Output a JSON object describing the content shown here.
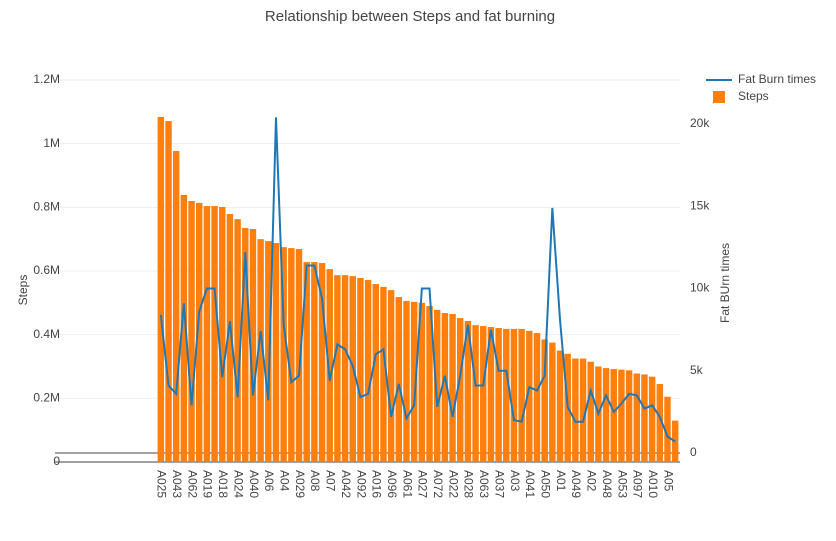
{
  "chart_data": {
    "type": "bar_line",
    "title": "Relationship between Steps and fat burning",
    "ylabel": "Steps",
    "y2label": "Fat BUrn times",
    "categories": [
      "A025",
      null,
      "A043",
      null,
      "A062",
      null,
      "A019",
      null,
      "A018",
      null,
      "A024",
      null,
      "A040",
      null,
      "A06",
      null,
      "A04",
      null,
      "A029",
      null,
      "A08",
      null,
      "A07",
      null,
      "A042",
      null,
      "A092",
      null,
      "A016",
      null,
      "A096",
      null,
      "A061",
      null,
      "A027",
      null,
      "A072",
      null,
      "A022",
      null,
      "A028",
      null,
      "A063",
      null,
      "A037",
      null,
      "A03",
      null,
      "A041",
      null,
      "A050",
      null,
      "A01",
      null,
      "A049",
      null,
      "A02",
      null,
      "A048",
      null,
      "A053",
      null,
      "A097",
      null,
      "A010",
      null,
      "A05",
      null
    ],
    "series": [
      {
        "name": "Fat Burn times",
        "type": "line",
        "axis": "y2",
        "color": "#1f77b4",
        "values": [
          8400,
          4100,
          3600,
          9100,
          2900,
          8600,
          10000,
          10000,
          4600,
          8000,
          3400,
          12200,
          3500,
          7400,
          3200,
          20400,
          7800,
          4300,
          4700,
          11400,
          11400,
          9400,
          4400,
          6600,
          6300,
          5300,
          3400,
          3600,
          6000,
          6300,
          2200,
          4200,
          2100,
          2900,
          10000,
          10000,
          2800,
          4700,
          2200,
          4700,
          7800,
          4100,
          4100,
          7500,
          5000,
          5000,
          2000,
          1900,
          4000,
          3800,
          4700,
          14900,
          8100,
          2800,
          1900,
          1900,
          3800,
          2400,
          3500,
          2500,
          3000,
          3600,
          3500,
          2700,
          2900,
          2200,
          1000,
          700
        ]
      },
      {
        "name": "Steps",
        "type": "bar",
        "color": "#ff7f0e",
        "values": [
          1084000,
          1071000,
          977000,
          839000,
          820000,
          814000,
          804000,
          804000,
          801000,
          779000,
          763000,
          735000,
          732000,
          700000,
          694000,
          688000,
          675000,
          672000,
          669000,
          628000,
          628000,
          625000,
          606000,
          587000,
          587000,
          584000,
          578000,
          572000,
          559000,
          550000,
          540000,
          518000,
          506000,
          503000,
          500000,
          490000,
          478000,
          468000,
          465000,
          452000,
          443000,
          430000,
          427000,
          424000,
          421000,
          418000,
          418000,
          418000,
          412000,
          405000,
          385000,
          375000,
          350000,
          340000,
          325000,
          325000,
          315000,
          300000,
          295000,
          292000,
          290000,
          288000,
          278000,
          275000,
          268000,
          245000,
          205000,
          130000
        ]
      }
    ],
    "ylim": [
      0,
      1200000
    ],
    "yticks": [
      0,
      {
        "value": 200000,
        "label": "0.2M"
      },
      {
        "value": 400000,
        "label": "0.4M"
      },
      {
        "value": 600000,
        "label": "0.6M"
      },
      {
        "value": 800000,
        "label": "0.8M"
      },
      {
        "value": 1000000,
        "label": "1M"
      },
      {
        "value": 1200000,
        "label": "1.2M"
      }
    ],
    "y2lim": [
      -547,
      22675
    ],
    "y2ticks": [
      0,
      {
        "value": 5000,
        "label": "5k"
      },
      {
        "value": 10000,
        "label": "10k"
      },
      {
        "value": 15000,
        "label": "15k"
      },
      {
        "value": 20000,
        "label": "20k"
      }
    ],
    "grid": true,
    "legend": "top-right"
  }
}
